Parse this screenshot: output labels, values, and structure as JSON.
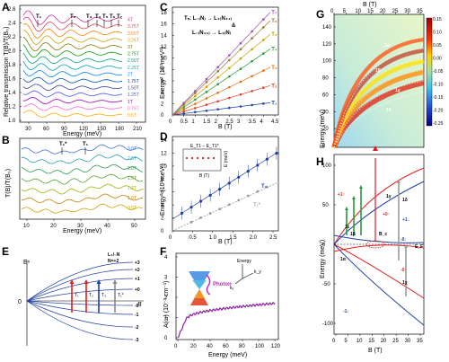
{
  "panels": {
    "A": {
      "label": "A",
      "ylabel": "Relative transmission T(B)/T(B₀)",
      "xlabel": "Energy (meV)",
      "xticks": [
        "30",
        "60",
        "90",
        "120",
        "150",
        "180",
        "210"
      ],
      "yticks": [
        "1.0",
        "1.2",
        "1.4",
        "1.6",
        "1.8",
        "2.0",
        "2.2",
        "2.4",
        "2.6"
      ],
      "markers": [
        "T₁",
        "T₂",
        "T₃",
        "T₄",
        "T₅",
        "T₆",
        "T₇"
      ],
      "fields": [
        "4T",
        "3.75T",
        "3.50T",
        "3.25T",
        "3T",
        "2.75T",
        "2.50T",
        "2.25T",
        "2T",
        "1.75T",
        "1.50T",
        "1.25T",
        "1T",
        "0.75T",
        "0.5T"
      ],
      "colors": [
        "#cc3399",
        "#e0405a",
        "#ff7f00",
        "#c8a000",
        "#7a7a00",
        "#00a000",
        "#00a080",
        "#00a0c0",
        "#0080ff",
        "#0050c0",
        "#3040a0",
        "#5050ff",
        "#a000c0",
        "#ff66cc",
        "#ffaa00"
      ]
    },
    "B": {
      "label": "B",
      "ylabel": "T(B)/T(B₀)",
      "xlabel": "Energy (meV)",
      "xticks": [
        "10",
        "20",
        "30",
        "40",
        "50"
      ],
      "markers": [
        "T₁*",
        "T₁"
      ],
      "fields": [
        "3.0T",
        "2.5T",
        "2.0T",
        "1.6T",
        "1.2T",
        "1.0T",
        "0.5T"
      ],
      "colors": [
        "#3a6bd6",
        "#2aa0b0",
        "#2a9a4a",
        "#5aa02a",
        "#a0b000",
        "#d08000",
        "#d0a000"
      ]
    },
    "C": {
      "label": "C",
      "ylabel": "Energy² (10³meV²)",
      "xlabel": "B (T)",
      "xticks": [
        "0",
        "0.5",
        "1",
        "1.5",
        "2",
        "2.5",
        "3",
        "3.5",
        "4",
        "4.5"
      ],
      "yticks": [
        "0",
        "2",
        "4",
        "6",
        "8",
        "10",
        "12",
        "14",
        "16",
        "18"
      ],
      "formula_line1": "Tₙ: L₋₍N₎ → L₊₍N₊₁₎",
      "formula_line2": "&",
      "formula_line3": "L₋₍N₊₁₎ → L₊₍N₎",
      "series": [
        {
          "name": "T₁",
          "color": "#1f3fa8",
          "slope": 0.5
        },
        {
          "name": "T₂",
          "color": "#d8402a",
          "slope": 1.2
        },
        {
          "name": "T₃",
          "color": "#e07010",
          "slope": 1.95
        },
        {
          "name": "T₄",
          "color": "#2a9a3a",
          "slope": 2.7
        },
        {
          "name": "T₅",
          "color": "#c8a000",
          "slope": 3.3
        },
        {
          "name": "T₆",
          "color": "#9a7a30",
          "slope": 3.85
        },
        {
          "name": "T₇",
          "color": "#9a50b0",
          "slope": 4.2
        }
      ]
    },
    "D": {
      "label": "D",
      "ylabel": "Energy² (10²meV²)",
      "xlabel": "B (T)",
      "xticks": [
        "0",
        "0.5",
        "1.0",
        "1.5",
        "2.0",
        "2.5"
      ],
      "yticks": [
        "0",
        "2",
        "4",
        "6",
        "8",
        "10",
        "12",
        "14"
      ],
      "series_T1": "T₁",
      "series_T1star": "T₁*",
      "inset_label": "E_T1 − E_T1*",
      "inset_ylabel": "E (meV)",
      "inset_xlabel": "B (T)",
      "inset_yticks": [
        "0",
        "10",
        "20"
      ],
      "inset_xticks": [
        "0",
        "1",
        "2",
        "3"
      ]
    },
    "E": {
      "label": "E",
      "ylabel": "Eⁿ",
      "xlabel": "B",
      "zero": "0",
      "levels_right": [
        "+3",
        "+2",
        "+1",
        "+0",
        "-0",
        "-1",
        "-2",
        "-3"
      ],
      "legend_top": "L₊/₋N",
      "legend_n": "N=+2",
      "arrows": [
        "T₁",
        "T₂",
        "T₃",
        "T₁*"
      ]
    },
    "F": {
      "label": "F",
      "ylabel": "A(ω) (10⁻³ cm⁻¹)",
      "xlabel": "Energy (meV)",
      "xticks": [
        "0",
        "20",
        "40",
        "60",
        "80",
        "100",
        "120"
      ],
      "yticks": [
        "0",
        "1",
        "2",
        "3",
        "4"
      ],
      "photon": "Photon",
      "axis_energy": "Energy",
      "axis_kx": "kₓ",
      "axis_ky": "k_y"
    },
    "G": {
      "label": "G",
      "top_label": "B (T)",
      "top_ticks": [
        "0",
        "5",
        "10",
        "15",
        "20",
        "25",
        "30",
        "35"
      ],
      "ylabel": "Energy (meV)",
      "yticks": [
        "0",
        "20",
        "40",
        "60",
        "80",
        "100",
        "120",
        "140"
      ],
      "colorbar_ticks": [
        "0.15",
        "0.10",
        "0.05",
        "0.00",
        "-0.05",
        "-0.10",
        "-0.15",
        "-0.20",
        "-0.25"
      ],
      "curve_labels": [
        "1α",
        "1β",
        "1γ",
        "1δ"
      ]
    },
    "H": {
      "label": "H",
      "ylabel": "Energy (meV)",
      "xlabel": "B (T)",
      "xticks": [
        "0",
        "5",
        "10",
        "15",
        "20",
        "25",
        "30",
        "35"
      ],
      "yticks": [
        "-100",
        "-50",
        "0",
        "50",
        "100"
      ],
      "annotations": [
        "+1↑",
        "+0↑",
        "-0↓",
        "+1↓",
        "-1↓",
        "-0↑",
        "B_c",
        "E_F",
        "1α",
        "1β",
        "1γ",
        "1δ",
        "1ε",
        "1χ"
      ]
    }
  }
}
